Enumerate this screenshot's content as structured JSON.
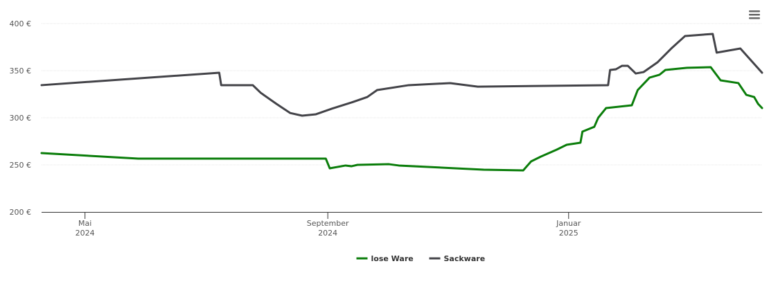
{
  "chart_data": {
    "type": "line",
    "series": [
      {
        "name": "lose Ware",
        "color": "#0a7d0a",
        "x": [
          "2024-04-09",
          "2024-05-28",
          "2024-08-31",
          "2024-09-02",
          "2024-09-10",
          "2024-09-13",
          "2024-09-16",
          "2024-10-02",
          "2024-10-07",
          "2024-11-19",
          "2024-12-09",
          "2024-12-13",
          "2024-12-18",
          "2024-12-26",
          "2024-12-31",
          "2025-01-07",
          "2025-01-08",
          "2025-01-14",
          "2025-01-16",
          "2025-01-20",
          "2025-02-02",
          "2025-02-05",
          "2025-02-11",
          "2025-02-16",
          "2025-02-19",
          "2025-03-02",
          "2025-03-14",
          "2025-03-19",
          "2025-03-28",
          "2025-04-01",
          "2025-04-05",
          "2025-04-07",
          "2025-04-09"
        ],
        "values": [
          262.5,
          256.6,
          256.6,
          246.3,
          249.3,
          248.5,
          250,
          250.7,
          249.3,
          244.9,
          244.1,
          253.7,
          258.8,
          266.2,
          271.3,
          273.5,
          285.3,
          290.4,
          300,
          310.3,
          313.2,
          329.4,
          342.6,
          345.6,
          350.7,
          353,
          353.7,
          339.7,
          336.8,
          324.3,
          322,
          314.7,
          310.3
        ]
      },
      {
        "name": "Sackware",
        "color": "#434348",
        "x": [
          "2024-04-09",
          "2024-07-08",
          "2024-07-09",
          "2024-07-25",
          "2024-07-29",
          "2024-08-06",
          "2024-08-13",
          "2024-08-19",
          "2024-08-26",
          "2024-09-03",
          "2024-09-13",
          "2024-09-21",
          "2024-09-26",
          "2024-10-12",
          "2024-11-02",
          "2024-11-16",
          "2025-01-21",
          "2025-01-22",
          "2025-01-25",
          "2025-01-28",
          "2025-01-31",
          "2025-02-04",
          "2025-02-08",
          "2025-02-15",
          "2025-02-22",
          "2025-03-01",
          "2025-03-15",
          "2025-03-17",
          "2025-03-29",
          "2025-04-09"
        ],
        "values": [
          334.6,
          347.8,
          334.6,
          334.6,
          326.5,
          314.7,
          305,
          302.2,
          303.7,
          309.6,
          316.2,
          322,
          329.4,
          334.6,
          336.8,
          333,
          334.6,
          350.7,
          351.5,
          355.1,
          355.1,
          347,
          348.5,
          358.8,
          373.5,
          386.8,
          389,
          369.1,
          373.5,
          347.8
        ]
      }
    ],
    "xlim": [
      "2024-04-09",
      "2025-04-09"
    ],
    "xticks": [
      {
        "value": "2024-05-01",
        "label": [
          "Mai",
          "2024"
        ]
      },
      {
        "value": "2024-09-01",
        "label": [
          "September",
          "2024"
        ]
      },
      {
        "value": "2025-01-01",
        "label": [
          "Januar",
          "2025"
        ]
      }
    ],
    "ylim": [
      200,
      400
    ],
    "yticks": [
      {
        "value": 200,
        "label": "200 €"
      },
      {
        "value": 250,
        "label": "250 €"
      },
      {
        "value": 300,
        "label": "300 €"
      },
      {
        "value": 350,
        "label": "350 €"
      },
      {
        "value": 400,
        "label": "400 €"
      }
    ],
    "grid": true,
    "legend": "bottom"
  }
}
